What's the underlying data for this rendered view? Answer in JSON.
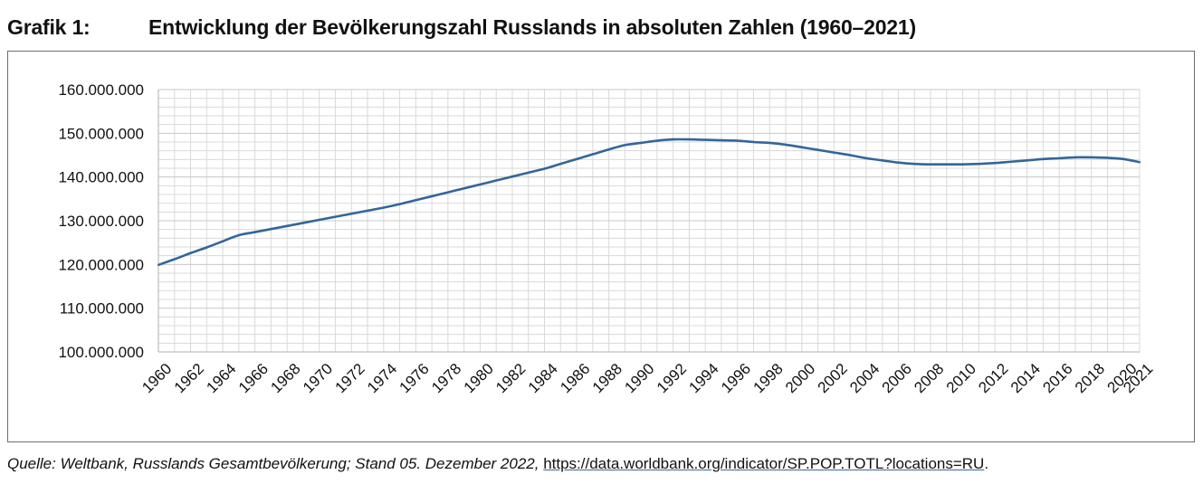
{
  "header": {
    "label": "Grafik 1:",
    "title": "Entwicklung der Bevölkerungszahl Russlands in absoluten Zahlen (1960–2021)"
  },
  "source": {
    "text": "Quelle: Weltbank, Russlands Gesamtbevölkerung; Stand 05. Dezember 2022,",
    "link": "https://data.worldbank.org/indicator/SP.POP.TOTL?locations=RU",
    "end": "."
  },
  "colors": {
    "line": "#336699",
    "grid": "#d9d9d9",
    "axis": "#bfbfbf",
    "frame": "#6e6e6e"
  },
  "chart_data": {
    "type": "line",
    "title": "",
    "xlabel": "",
    "ylabel": "",
    "ylim": [
      100000000,
      160000000
    ],
    "yticks": [
      100000000,
      110000000,
      120000000,
      130000000,
      140000000,
      150000000,
      160000000
    ],
    "ytick_labels": [
      "100.000.000",
      "110.000.000",
      "120.000.000",
      "130.000.000",
      "140.000.000",
      "150.000.000",
      "160.000.000"
    ],
    "xlim": [
      1960,
      2021
    ],
    "xtick_labels": [
      "1960",
      "1962",
      "1964",
      "1966",
      "1968",
      "1970",
      "1972",
      "1974",
      "1976",
      "1978",
      "1980",
      "1982",
      "1984",
      "1986",
      "1988",
      "1990",
      "1992",
      "1994",
      "1996",
      "1998",
      "2000",
      "2002",
      "2004",
      "2006",
      "2008",
      "2010",
      "2012",
      "2014",
      "2016",
      "2018",
      "2020",
      "2021"
    ],
    "grid": true,
    "legend": "none",
    "series": [
      {
        "x": [
          1960,
          1961,
          1962,
          1963,
          1964,
          1965,
          1966,
          1967,
          1968,
          1969,
          1970,
          1971,
          1972,
          1973,
          1974,
          1975,
          1976,
          1977,
          1978,
          1979,
          1980,
          1981,
          1982,
          1983,
          1984,
          1985,
          1986,
          1987,
          1988,
          1989,
          1990,
          1991,
          1992,
          1993,
          1994,
          1995,
          1996,
          1997,
          1998,
          1999,
          2000,
          2001,
          2002,
          2003,
          2004,
          2005,
          2006,
          2007,
          2008,
          2009,
          2010,
          2011,
          2012,
          2013,
          2014,
          2015,
          2016,
          2017,
          2018,
          2019,
          2020,
          2021
        ],
        "values": [
          119900000,
          121200000,
          122600000,
          123900000,
          125300000,
          126700000,
          127400000,
          128100000,
          128800000,
          129500000,
          130200000,
          130900000,
          131600000,
          132300000,
          133000000,
          133800000,
          134700000,
          135600000,
          136500000,
          137400000,
          138300000,
          139200000,
          140100000,
          141000000,
          141900000,
          143000000,
          144100000,
          145200000,
          146300000,
          147300000,
          147800000,
          148300000,
          148600000,
          148600000,
          148500000,
          148400000,
          148300000,
          148000000,
          147800000,
          147400000,
          146800000,
          146200000,
          145600000,
          145000000,
          144300000,
          143800000,
          143300000,
          143000000,
          142900000,
          142900000,
          142900000,
          143000000,
          143200000,
          143500000,
          143800000,
          144100000,
          144300000,
          144500000,
          144500000,
          144400000,
          144100000,
          143400000
        ]
      }
    ]
  }
}
